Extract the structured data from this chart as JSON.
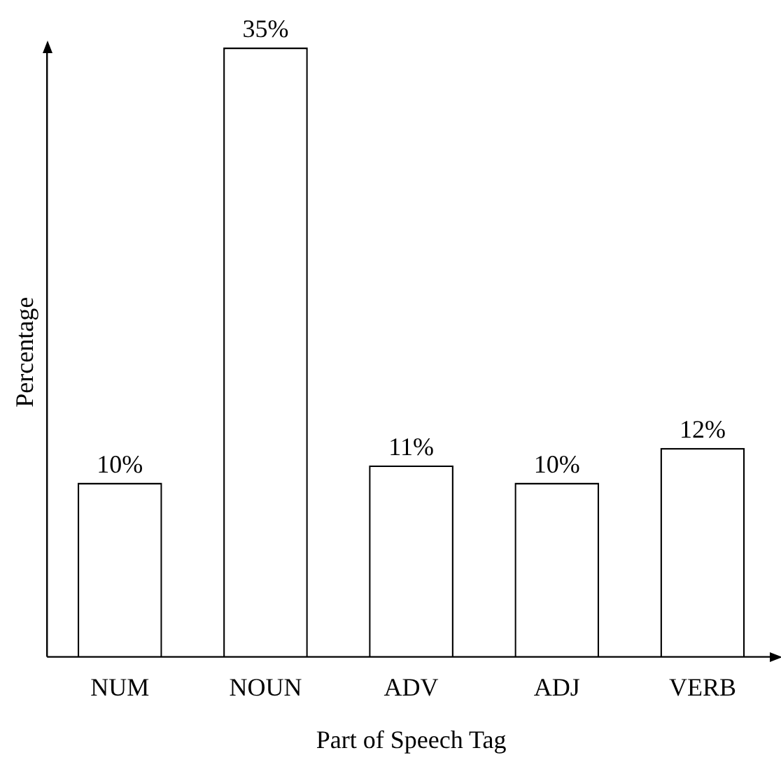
{
  "chart_data": {
    "type": "bar",
    "xlabel": "Part of Speech Tag",
    "ylabel": "Percentage",
    "categories": [
      "NUM",
      "NOUN",
      "ADV",
      "ADJ",
      "VERB"
    ],
    "values": [
      10,
      35,
      11,
      10,
      12
    ],
    "value_labels": [
      "10%",
      "35%",
      "11%",
      "10%",
      "12%"
    ],
    "color": "#ffffff",
    "ylim": [
      0,
      35
    ],
    "grid": false,
    "legend": false
  }
}
